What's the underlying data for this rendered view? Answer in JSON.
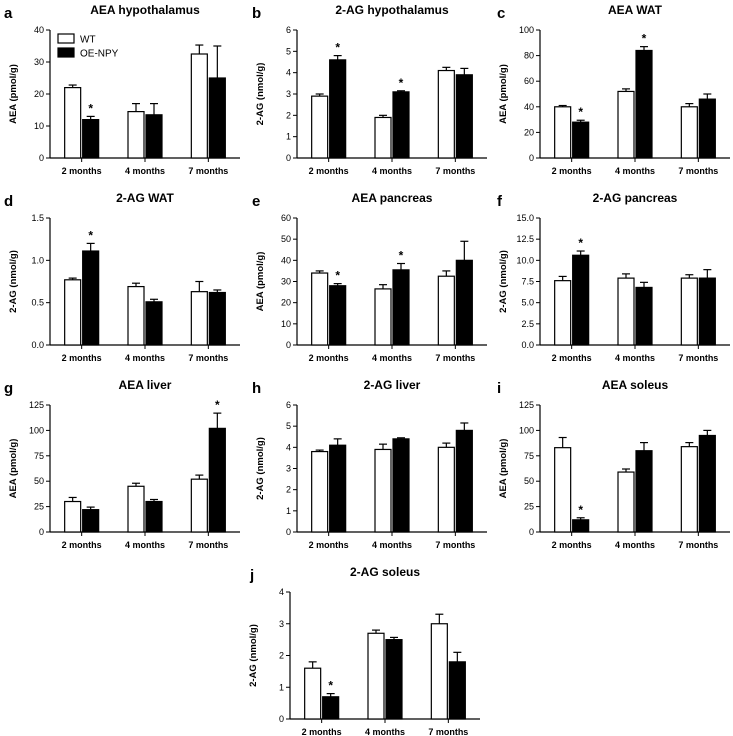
{
  "chart_data": [
    {
      "type": "bar",
      "letter": "a",
      "title": "AEA hypothalamus",
      "ylabel": "AEA (pmol/g)",
      "ylim": [
        0,
        40
      ],
      "yticks": [
        "0",
        "10",
        "20",
        "30",
        "40"
      ],
      "categories": [
        "2 months",
        "4 months",
        "7 months"
      ],
      "series": [
        {
          "name": "WT",
          "values": [
            22,
            14.5,
            32.5
          ],
          "errors": [
            0.8,
            2.5,
            2.8
          ]
        },
        {
          "name": "OE-NPY",
          "values": [
            12,
            13.5,
            25
          ],
          "errors": [
            1,
            3.5,
            10
          ]
        }
      ],
      "annotations": [
        {
          "category": 0,
          "series": 1,
          "text": "*"
        }
      ]
    },
    {
      "type": "bar",
      "letter": "b",
      "title": "2-AG hypothalamus",
      "ylabel": "2-AG (nmol/g)",
      "ylim": [
        0,
        6
      ],
      "yticks": [
        "0",
        "1",
        "2",
        "3",
        "4",
        "5",
        "6"
      ],
      "categories": [
        "2 months",
        "4 months",
        "7 months"
      ],
      "series": [
        {
          "name": "WT",
          "values": [
            2.9,
            1.9,
            4.1
          ],
          "errors": [
            0.1,
            0.1,
            0.15
          ]
        },
        {
          "name": "OE-NPY",
          "values": [
            4.6,
            3.1,
            3.9
          ],
          "errors": [
            0.2,
            0.05,
            0.3
          ]
        }
      ],
      "annotations": [
        {
          "category": 0,
          "series": 1,
          "text": "*"
        },
        {
          "category": 1,
          "series": 1,
          "text": "*"
        }
      ]
    },
    {
      "type": "bar",
      "letter": "c",
      "title": "AEA WAT",
      "ylabel": "AEA (pmol/g)",
      "ylim": [
        0,
        100
      ],
      "yticks": [
        "0",
        "20",
        "40",
        "60",
        "80",
        "100"
      ],
      "categories": [
        "2 months",
        "4 months",
        "7 months"
      ],
      "series": [
        {
          "name": "WT",
          "values": [
            40,
            52,
            40
          ],
          "errors": [
            1,
            2,
            2.5
          ]
        },
        {
          "name": "OE-NPY",
          "values": [
            28,
            84,
            46
          ],
          "errors": [
            1.5,
            3,
            4
          ]
        }
      ],
      "annotations": [
        {
          "category": 0,
          "series": 1,
          "text": "*"
        },
        {
          "category": 1,
          "series": 1,
          "text": "*"
        }
      ]
    },
    {
      "type": "bar",
      "letter": "d",
      "title": "2-AG WAT",
      "ylabel": "2-AG (nmol/g)",
      "ylim": [
        0,
        1.5
      ],
      "yticks": [
        "0.0",
        "0.5",
        "1.0",
        "1.5"
      ],
      "categories": [
        "2 months",
        "4 months",
        "7 months"
      ],
      "series": [
        {
          "name": "WT",
          "values": [
            0.77,
            0.69,
            0.63
          ],
          "errors": [
            0.02,
            0.04,
            0.12
          ]
        },
        {
          "name": "OE-NPY",
          "values": [
            1.11,
            0.51,
            0.62
          ],
          "errors": [
            0.09,
            0.03,
            0.03
          ]
        }
      ],
      "annotations": [
        {
          "category": 0,
          "series": 1,
          "text": "*"
        }
      ]
    },
    {
      "type": "bar",
      "letter": "e",
      "title": "AEA pancreas",
      "ylabel": "AEA (pmol/g)",
      "ylim": [
        0,
        60
      ],
      "yticks": [
        "0",
        "10",
        "20",
        "30",
        "40",
        "50",
        "60"
      ],
      "categories": [
        "2 months",
        "4 months",
        "7 months"
      ],
      "series": [
        {
          "name": "WT",
          "values": [
            34,
            26.5,
            32.5
          ],
          "errors": [
            1,
            2,
            2.5
          ]
        },
        {
          "name": "OE-NPY",
          "values": [
            28,
            35.5,
            40
          ],
          "errors": [
            1,
            3,
            9
          ]
        }
      ],
      "annotations": [
        {
          "category": 0,
          "series": 1,
          "text": "*"
        },
        {
          "category": 1,
          "series": 1,
          "text": "*"
        }
      ]
    },
    {
      "type": "bar",
      "letter": "f",
      "title": "2-AG pancreas",
      "ylabel": "2-AG (nmol/g)",
      "ylim": [
        0,
        15
      ],
      "yticks": [
        "0.0",
        "2.5",
        "5.0",
        "7.5",
        "10.0",
        "12.5",
        "15.0"
      ],
      "categories": [
        "2 months",
        "4 months",
        "7 months"
      ],
      "series": [
        {
          "name": "WT",
          "values": [
            7.6,
            7.9,
            7.9
          ],
          "errors": [
            0.5,
            0.5,
            0.4
          ]
        },
        {
          "name": "OE-NPY",
          "values": [
            10.6,
            6.8,
            7.9
          ],
          "errors": [
            0.5,
            0.6,
            1
          ]
        }
      ],
      "annotations": [
        {
          "category": 0,
          "series": 1,
          "text": "*"
        }
      ]
    },
    {
      "type": "bar",
      "letter": "g",
      "title": "AEA liver",
      "ylabel": "AEA (pmol/g)",
      "ylim": [
        0,
        125
      ],
      "yticks": [
        "0",
        "25",
        "50",
        "75",
        "100",
        "125"
      ],
      "categories": [
        "2 months",
        "4 months",
        "7 months"
      ],
      "series": [
        {
          "name": "WT",
          "values": [
            30,
            45,
            52
          ],
          "errors": [
            4,
            3,
            4
          ]
        },
        {
          "name": "OE-NPY",
          "values": [
            22,
            30,
            102
          ],
          "errors": [
            2.5,
            2,
            15
          ]
        }
      ],
      "annotations": [
        {
          "category": 2,
          "series": 1,
          "text": "*"
        }
      ]
    },
    {
      "type": "bar",
      "letter": "h",
      "title": "2-AG liver",
      "ylabel": "2-AG (nmol/g)",
      "ylim": [
        0,
        6
      ],
      "yticks": [
        "0",
        "1",
        "2",
        "3",
        "4",
        "5",
        "6"
      ],
      "categories": [
        "2 months",
        "4 months",
        "7 months"
      ],
      "series": [
        {
          "name": "WT",
          "values": [
            3.8,
            3.9,
            4.0
          ],
          "errors": [
            0.07,
            0.25,
            0.2
          ]
        },
        {
          "name": "OE-NPY",
          "values": [
            4.1,
            4.4,
            4.8
          ],
          "errors": [
            0.3,
            0.05,
            0.35
          ]
        }
      ],
      "annotations": []
    },
    {
      "type": "bar",
      "letter": "i",
      "title": "AEA soleus",
      "ylabel": "AEA (pmol/g)",
      "ylim": [
        0,
        125
      ],
      "yticks": [
        "0",
        "25",
        "50",
        "75",
        "100",
        "125"
      ],
      "categories": [
        "2 months",
        "4 months",
        "7 months"
      ],
      "series": [
        {
          "name": "WT",
          "values": [
            83,
            59,
            84
          ],
          "errors": [
            10,
            3,
            4
          ]
        },
        {
          "name": "OE-NPY",
          "values": [
            12,
            80,
            95
          ],
          "errors": [
            2,
            8,
            5
          ]
        }
      ],
      "annotations": [
        {
          "category": 0,
          "series": 1,
          "text": "*"
        }
      ]
    },
    {
      "type": "bar",
      "letter": "j",
      "title": "2-AG soleus",
      "ylabel": "2-AG (nmol/g)",
      "ylim": [
        0,
        4
      ],
      "yticks": [
        "0",
        "1",
        "2",
        "3",
        "4"
      ],
      "categories": [
        "2 months",
        "4 months",
        "7 months"
      ],
      "series": [
        {
          "name": "WT",
          "values": [
            1.6,
            2.7,
            3.0
          ],
          "errors": [
            0.2,
            0.1,
            0.3
          ]
        },
        {
          "name": "OE-NPY",
          "values": [
            0.7,
            2.5,
            1.8
          ],
          "errors": [
            0.1,
            0.07,
            0.3
          ]
        }
      ],
      "annotations": [
        {
          "category": 0,
          "series": 1,
          "text": "*"
        }
      ]
    }
  ],
  "legend": {
    "items": [
      {
        "label": "WT",
        "fill": "#ffffff"
      },
      {
        "label": "OE-NPY",
        "fill": "#000000"
      }
    ]
  },
  "colors": {
    "wt_fill": "#ffffff",
    "oe_fill": "#000000",
    "stroke": "#000000"
  }
}
